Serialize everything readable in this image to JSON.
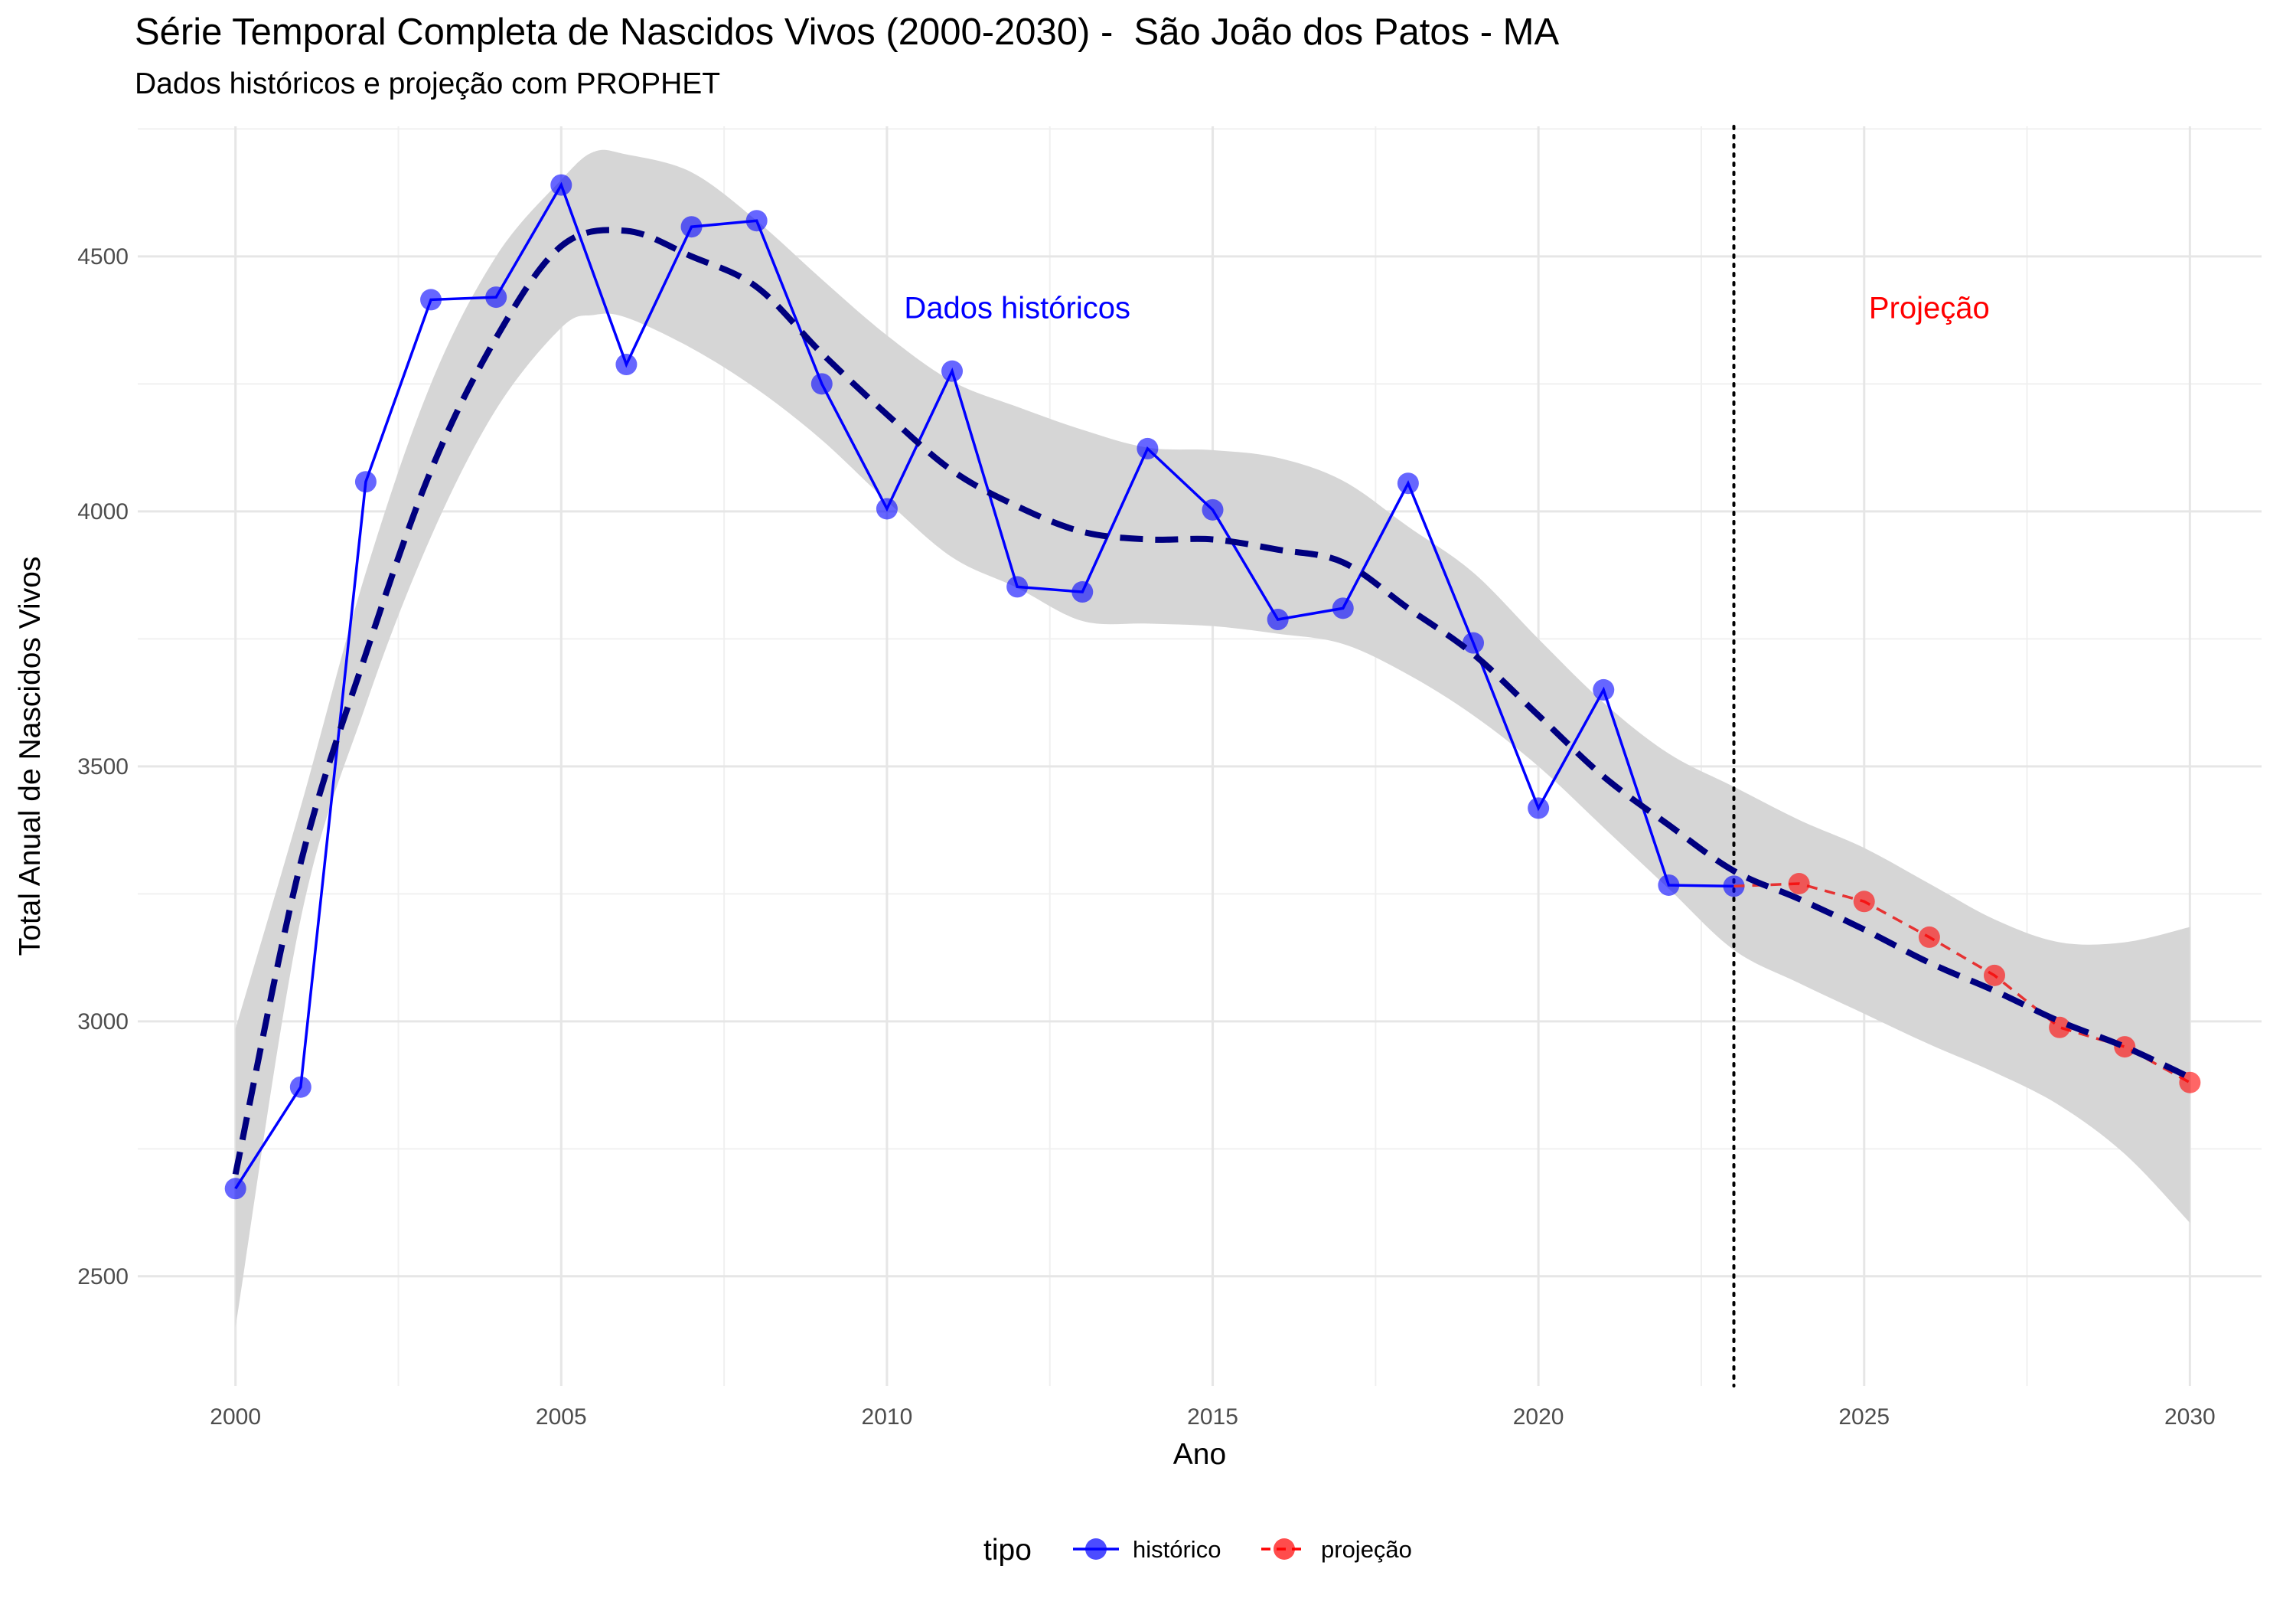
{
  "title": "Série Temporal Completa de Nascidos Vivos (2000-2030) -  São João dos Patos - MA",
  "subtitle": "Dados históricos e projeção com PROPHET",
  "chart_data": {
    "type": "line",
    "xlabel": "Ano",
    "ylabel": "Total Anual de Nascidos Vivos",
    "xlim": [
      1998.5,
      2031.1
    ],
    "ylim": [
      2285,
      4755
    ],
    "x_ticks": [
      2000,
      2005,
      2010,
      2015,
      2020,
      2025,
      2030
    ],
    "x_tick_labels": [
      "2000",
      "2005",
      "2010",
      "2015",
      "2020",
      "2025",
      "2030"
    ],
    "y_ticks": [
      2500,
      3000,
      3500,
      4000,
      4500
    ],
    "y_tick_labels": [
      "2500",
      "3000",
      "3500",
      "4000",
      "4500"
    ],
    "grid": true,
    "cutoff_year": 2023,
    "series": [
      {
        "name": "histórico",
        "color": "#0000ff",
        "x": [
          2000,
          2001,
          2002,
          2003,
          2004,
          2005,
          2006,
          2007,
          2008,
          2009,
          2010,
          2011,
          2012,
          2013,
          2014,
          2015,
          2016,
          2017,
          2018,
          2019,
          2020,
          2021,
          2022,
          2023
        ],
        "values": [
          2672,
          2871,
          4058,
          4415,
          4420,
          4640,
          4288,
          4558,
          4570,
          4250,
          4005,
          4275,
          3852,
          3842,
          4123,
          4003,
          3788,
          3810,
          4055,
          3742,
          3418,
          3650,
          3267,
          3265
        ]
      },
      {
        "name": "projeção",
        "color": "#ff0000",
        "x": [
          2023,
          2024,
          2025,
          2026,
          2027,
          2028,
          2029,
          2030
        ],
        "values": [
          3265,
          3270,
          3235,
          3165,
          3090,
          2988,
          2950,
          2880
        ]
      }
    ],
    "trend": {
      "color": "#00007f",
      "x": [
        2000,
        2001,
        2002,
        2003,
        2004,
        2005,
        2006,
        2007,
        2008,
        2009,
        2010,
        2011,
        2012,
        2013,
        2014,
        2015,
        2016,
        2017,
        2018,
        2019,
        2020,
        2021,
        2022,
        2023,
        2024,
        2025,
        2026,
        2027,
        2028,
        2029,
        2030
      ],
      "values": [
        2700,
        3310,
        3720,
        4080,
        4340,
        4520,
        4550,
        4500,
        4440,
        4310,
        4190,
        4080,
        4010,
        3960,
        3945,
        3945,
        3925,
        3900,
        3810,
        3720,
        3600,
        3480,
        3385,
        3295,
        3240,
        3180,
        3115,
        3060,
        3000,
        2950,
        2890
      ]
    },
    "ribbon": {
      "color": "#d6d6d6",
      "x": [
        2000,
        2001,
        2002,
        2003,
        2004,
        2005,
        2005.5,
        2006,
        2007,
        2008,
        2009,
        2010,
        2011,
        2012,
        2013,
        2014,
        2015,
        2016,
        2017,
        2018,
        2019,
        2020,
        2021,
        2022,
        2023,
        2024,
        2025,
        2026,
        2027,
        2028,
        2029,
        2030
      ],
      "upper": [
        2985,
        3420,
        3880,
        4250,
        4500,
        4650,
        4705,
        4700,
        4665,
        4570,
        4455,
        4345,
        4255,
        4205,
        4160,
        4125,
        4120,
        4105,
        4060,
        3970,
        3880,
        3750,
        3625,
        3525,
        3460,
        3395,
        3340,
        3270,
        3200,
        3155,
        3155,
        3185
      ],
      "lower": [
        2400,
        3200,
        3620,
        3950,
        4200,
        4360,
        4385,
        4380,
        4320,
        4240,
        4140,
        4020,
        3910,
        3850,
        3785,
        3780,
        3775,
        3760,
        3740,
        3680,
        3600,
        3500,
        3380,
        3260,
        3140,
        3075,
        3015,
        2955,
        2900,
        2835,
        2740,
        2605
      ]
    },
    "annotations": [
      {
        "text": "Dados históricos",
        "x": 2012.0,
        "y": 4400,
        "color": "#0000ff"
      },
      {
        "text": "Projeção",
        "x": 2026.0,
        "y": 4400,
        "color": "#ff0000"
      }
    ],
    "legend": {
      "title": "tipo",
      "position": "bottom",
      "entries": [
        {
          "label": "histórico",
          "color": "#0000ff"
        },
        {
          "label": "projeção",
          "color": "#ff0000"
        }
      ]
    }
  }
}
